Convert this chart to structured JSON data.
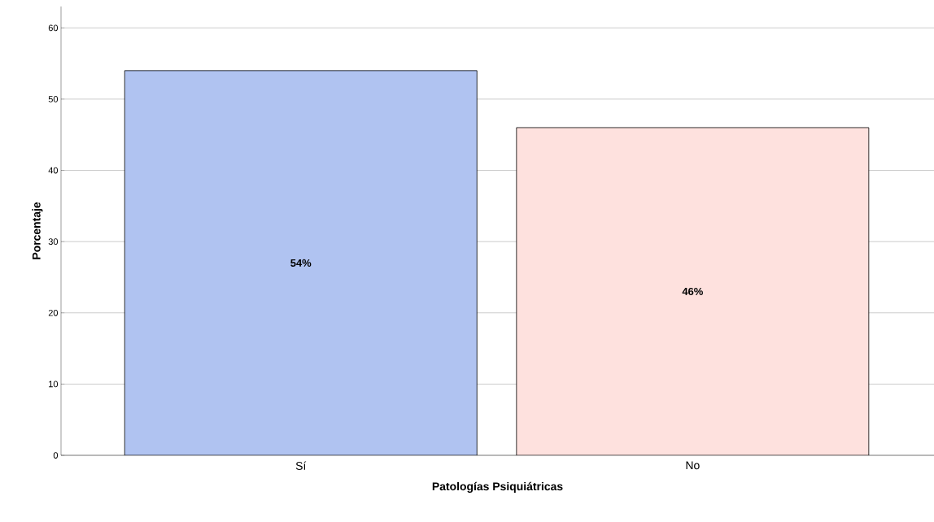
{
  "chart_data": {
    "type": "bar",
    "xlabel": "Patologías Psiquiátricas",
    "ylabel": "Porcentaje",
    "categories": [
      "Sí",
      "No"
    ],
    "values": [
      54,
      46
    ],
    "colors": [
      "#b0c3f1",
      "#fee1de"
    ],
    "value_labels": [
      "54%",
      "46%"
    ],
    "ylim": [
      0,
      63
    ],
    "yticks": [
      0,
      10,
      20,
      30,
      40,
      50,
      60
    ],
    "grid": "y"
  }
}
